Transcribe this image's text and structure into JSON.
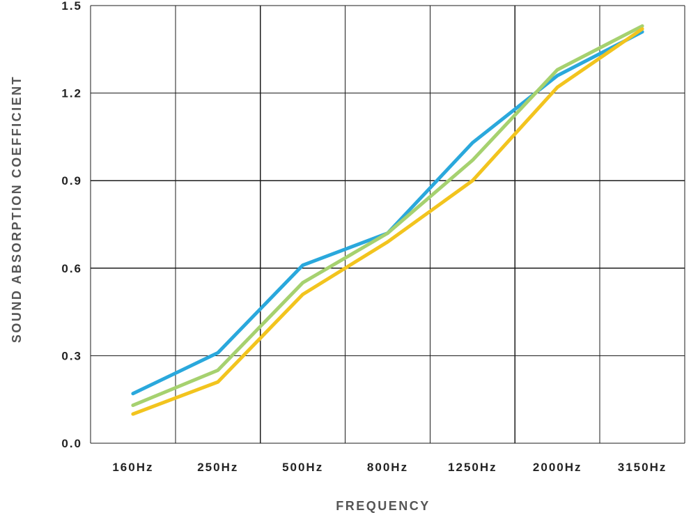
{
  "chart_data": {
    "type": "line",
    "title": "",
    "xlabel": "FREQUENCY",
    "ylabel": "SOUND ABSORPTION COEFFICIENT",
    "categories": [
      "160Hz",
      "250Hz",
      "500Hz",
      "800Hz",
      "1250Hz",
      "2000Hz",
      "3150Hz"
    ],
    "y_ticks": [
      "0.0",
      "0.3",
      "0.6",
      "0.9",
      "1.2",
      "1.5"
    ],
    "ylim": [
      0,
      1.5
    ],
    "grid": true,
    "legend": "none",
    "series": [
      {
        "color": "#2aa8dc",
        "values": [
          0.17,
          0.31,
          0.61,
          0.72,
          1.03,
          1.26,
          1.41
        ]
      },
      {
        "color": "#a6d16f",
        "values": [
          0.13,
          0.25,
          0.55,
          0.72,
          0.97,
          1.28,
          1.43
        ]
      },
      {
        "color": "#f2c41e",
        "values": [
          0.1,
          0.21,
          0.51,
          0.69,
          0.9,
          1.22,
          1.42
        ]
      }
    ]
  }
}
